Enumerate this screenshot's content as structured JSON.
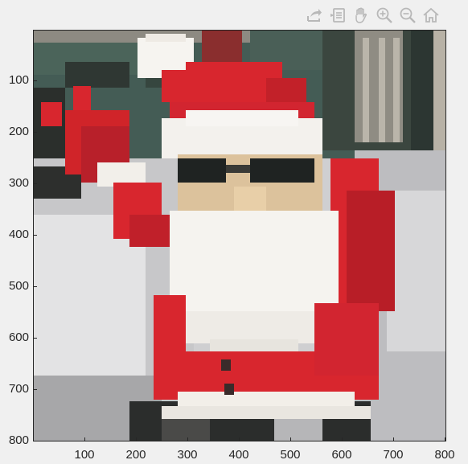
{
  "toolbar": {
    "buttons": [
      {
        "name": "export-icon",
        "tooltip": ""
      },
      {
        "name": "data-brush-icon",
        "tooltip": ""
      },
      {
        "name": "pan-hand-icon",
        "tooltip": ""
      },
      {
        "name": "zoom-in-icon",
        "tooltip": ""
      },
      {
        "name": "zoom-out-icon",
        "tooltip": ""
      },
      {
        "name": "home-icon",
        "tooltip": ""
      }
    ],
    "icon_color": "#b8b8b8"
  },
  "axes": {
    "yticks": [
      "100",
      "200",
      "300",
      "400",
      "500",
      "600",
      "700",
      "800"
    ],
    "xticks": [
      "100",
      "200",
      "300",
      "400",
      "500",
      "600",
      "700",
      "800"
    ],
    "xlim": [
      0,
      800
    ],
    "ylim": [
      0,
      800
    ],
    "y_direction": "reverse"
  },
  "image": {
    "subject": "pixelated-santa-figurine",
    "colors": {
      "red": "#d8262e",
      "dark_red": "#a81a20",
      "white": "#f4f2ee",
      "skin": "#d9bf98",
      "glasses": "#1e2222",
      "bg_green": "#3f5a52",
      "bg_gray": "#c9c9cb",
      "bg_dark": "#2b2e2c"
    }
  }
}
